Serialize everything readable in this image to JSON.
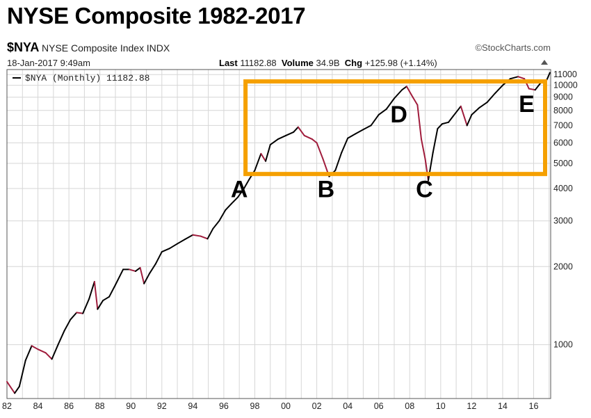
{
  "header": {
    "title": "NYSE Composite 1982-2017",
    "symbol": "$NYA",
    "index_name": "NYSE Composite Index",
    "exchange": "INDX",
    "datetime": "18-Jan-2017 9:49am",
    "last_label": "Last",
    "last_value": "11182.88",
    "volume_label": "Volume",
    "volume_value": "34.9B",
    "chg_label": "Chg",
    "chg_value": "+125.98 (+1.14%)",
    "watermark": "©StockCharts.com"
  },
  "chart_data": {
    "type": "line",
    "title": "NYSE Composite 1982-2017",
    "y_scale": "log",
    "ylim": [
      620,
      11500
    ],
    "xlim": [
      1982.0,
      2017.1
    ],
    "grid": true,
    "colors": {
      "up": "#000000",
      "down": "#a01c3c",
      "highlight_box": "#f5a000"
    },
    "legend": {
      "position": "top-left",
      "label": "$NYA (Monthly) 11182.88"
    },
    "x_ticks": [
      {
        "value": 1982,
        "label": "82"
      },
      {
        "value": 1984,
        "label": "84"
      },
      {
        "value": 1986,
        "label": "86"
      },
      {
        "value": 1988,
        "label": "88"
      },
      {
        "value": 1990,
        "label": "90"
      },
      {
        "value": 1992,
        "label": "92"
      },
      {
        "value": 1994,
        "label": "94"
      },
      {
        "value": 1996,
        "label": "96"
      },
      {
        "value": 1998,
        "label": "98"
      },
      {
        "value": 2000,
        "label": "00"
      },
      {
        "value": 2002,
        "label": "02"
      },
      {
        "value": 2004,
        "label": "04"
      },
      {
        "value": 2006,
        "label": "06"
      },
      {
        "value": 2008,
        "label": "08"
      },
      {
        "value": 2010,
        "label": "10"
      },
      {
        "value": 2012,
        "label": "12"
      },
      {
        "value": 2014,
        "label": "14"
      },
      {
        "value": 2016,
        "label": "16"
      }
    ],
    "y_ticks": [
      {
        "value": 11000,
        "label": "11000"
      },
      {
        "value": 10000,
        "label": "10000"
      },
      {
        "value": 9000,
        "label": "9000"
      },
      {
        "value": 8000,
        "label": "8000"
      },
      {
        "value": 7000,
        "label": "7000"
      },
      {
        "value": 6000,
        "label": "6000"
      },
      {
        "value": 5000,
        "label": "5000"
      },
      {
        "value": 4000,
        "label": "4000"
      },
      {
        "value": 3000,
        "label": "3000"
      },
      {
        "value": 2000,
        "label": "2000"
      },
      {
        "value": 1000,
        "label": "1000"
      }
    ],
    "series": [
      {
        "x": [
          1982.0,
          1982.5,
          1982.8,
          1983.2,
          1983.6,
          1984.0,
          1984.5,
          1984.9,
          1985.3,
          1985.7,
          1986.1,
          1986.5,
          1986.9,
          1987.3,
          1987.65,
          1987.85,
          1988.2,
          1988.6,
          1989.0,
          1989.5,
          1989.9,
          1990.3,
          1990.6,
          1990.85,
          1991.2,
          1991.6,
          1992.0,
          1992.5,
          1993.0,
          1993.5,
          1994.0,
          1994.5,
          1994.95,
          1995.3,
          1995.7,
          1996.1,
          1996.5,
          1996.9,
          1997.3,
          1997.6,
          1998.0,
          1998.4,
          1998.7,
          1999.0,
          1999.5,
          2000.0,
          2000.5,
          2000.8,
          2001.2,
          2001.7,
          2002.0,
          2002.4,
          2002.8,
          2003.2,
          2003.6,
          2004.0,
          2004.5,
          2005.0,
          2005.5,
          2006.0,
          2006.5,
          2007.0,
          2007.5,
          2007.8,
          2008.2,
          2008.5,
          2008.75,
          2009.0,
          2009.2,
          2009.5,
          2009.8,
          2010.1,
          2010.5,
          2010.8,
          2011.3,
          2011.7,
          2012.0,
          2012.5,
          2013.0,
          2013.5,
          2014.0,
          2014.5,
          2015.0,
          2015.4,
          2015.7,
          2016.1,
          2016.5,
          2016.85,
          2017.05
        ],
        "y": [
          720,
          650,
          690,
          870,
          990,
          960,
          930,
          880,
          1000,
          1130,
          1250,
          1330,
          1320,
          1500,
          1750,
          1370,
          1480,
          1530,
          1700,
          1950,
          1950,
          1920,
          1980,
          1720,
          1880,
          2050,
          2280,
          2350,
          2450,
          2550,
          2650,
          2620,
          2560,
          2800,
          3000,
          3300,
          3500,
          3700,
          4000,
          4300,
          4700,
          5450,
          5100,
          5900,
          6200,
          6400,
          6600,
          6900,
          6400,
          6200,
          6000,
          5200,
          4450,
          4700,
          5500,
          6250,
          6500,
          6750,
          7000,
          7700,
          8100,
          8900,
          9600,
          9900,
          9000,
          8400,
          6200,
          5200,
          4300,
          5500,
          6800,
          7100,
          7200,
          7600,
          8300,
          7000,
          7700,
          8200,
          8600,
          9300,
          10000,
          10600,
          10800,
          10600,
          9700,
          9600,
          10300,
          10500,
          11180
        ]
      }
    ],
    "annotations": [
      {
        "label": "A",
        "x": 1997.0,
        "y": 3700
      },
      {
        "label": "B",
        "x": 2002.6,
        "y": 3700
      },
      {
        "label": "C",
        "x": 2008.95,
        "y": 3700
      },
      {
        "label": "D",
        "x": 2007.3,
        "y": 7200
      },
      {
        "label": "E",
        "x": 2015.55,
        "y": 7900
      }
    ],
    "highlight_box": {
      "x_start": 1997.4,
      "x_end": 2017.05,
      "y_low": 4550,
      "y_high": 10350
    }
  }
}
